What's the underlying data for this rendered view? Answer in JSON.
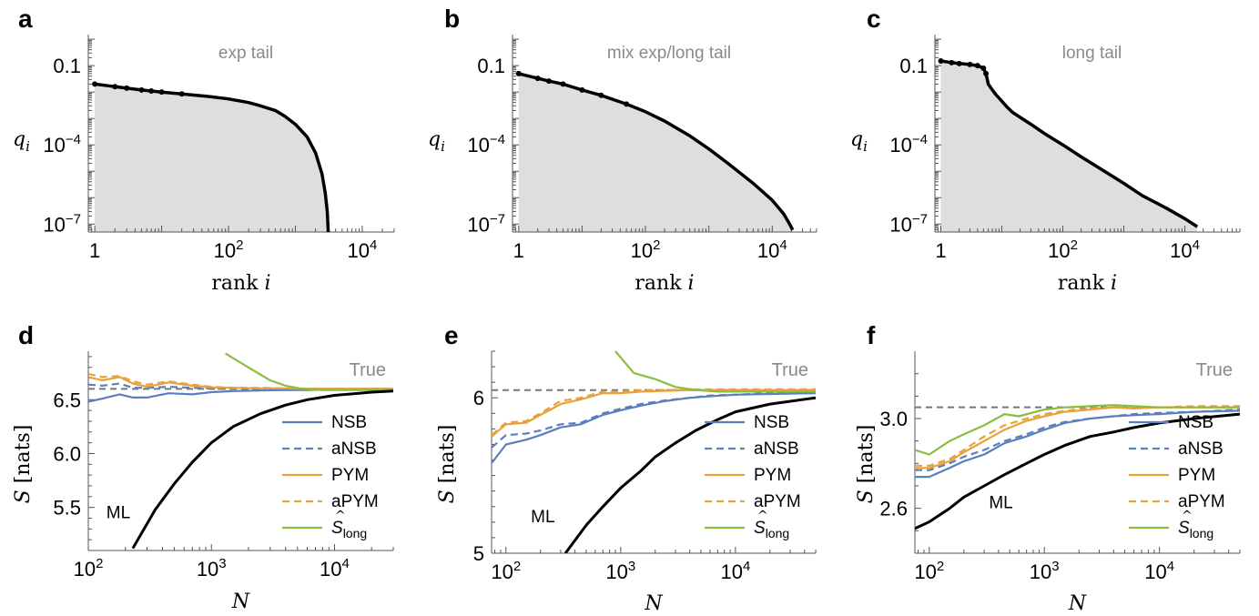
{
  "chart_data": [
    {
      "panel": "a",
      "type": "area",
      "title": "exp tail",
      "xlabel": "rank i",
      "ylabel": "q_i",
      "xscale": "log",
      "yscale": "log",
      "xlim": [
        0.8,
        30000
      ],
      "ylim": [
        5e-08,
        1.5
      ],
      "xticks": [
        {
          "v": 1,
          "m": "1",
          "e": ""
        },
        {
          "v": 100,
          "m": "10",
          "e": "2"
        },
        {
          "v": 10000,
          "m": "10",
          "e": "4"
        }
      ],
      "yticks": [
        {
          "v": 0.1,
          "m": "0.1",
          "e": ""
        },
        {
          "v": 0.0001,
          "m": "10",
          "e": "−4"
        },
        {
          "v": 1e-07,
          "m": "10",
          "e": "−7"
        }
      ],
      "series": [
        {
          "x": [
            1,
            2,
            3,
            5,
            7,
            10,
            20,
            50,
            100,
            200,
            300,
            500,
            700,
            1000,
            1500,
            2000,
            2500,
            2800,
            3000,
            3100
          ],
          "y": [
            0.02,
            0.016,
            0.014,
            0.012,
            0.011,
            0.01,
            0.0085,
            0.0068,
            0.0055,
            0.004,
            0.003,
            0.002,
            0.0012,
            0.0006,
            0.0002,
            5e-05,
            8e-06,
            1.5e-06,
            3e-07,
            5e-08
          ]
        }
      ]
    },
    {
      "panel": "b",
      "type": "area",
      "title": "mix exp/long tail",
      "xlabel": "rank i",
      "ylabel": "q_i",
      "xscale": "log",
      "yscale": "log",
      "xlim": [
        0.8,
        50000
      ],
      "ylim": [
        5e-08,
        1.5
      ],
      "xticks": [
        {
          "v": 1,
          "m": "1",
          "e": ""
        },
        {
          "v": 100,
          "m": "10",
          "e": "2"
        },
        {
          "v": 10000,
          "m": "10",
          "e": "4"
        }
      ],
      "yticks": [
        {
          "v": 0.1,
          "m": "0.1",
          "e": ""
        },
        {
          "v": 0.0001,
          "m": "10",
          "e": "−4"
        },
        {
          "v": 1e-07,
          "m": "10",
          "e": "−7"
        }
      ],
      "series": [
        {
          "x": [
            1,
            2,
            3,
            5,
            10,
            20,
            50,
            100,
            200,
            500,
            1000,
            2000,
            5000,
            10000,
            15000,
            18000,
            21000
          ],
          "y": [
            0.05,
            0.033,
            0.026,
            0.02,
            0.012,
            0.0075,
            0.0035,
            0.0018,
            0.0008,
            0.00022,
            7e-05,
            2e-05,
            3.5e-06,
            8e-07,
            2.5e-07,
            1.2e-07,
            6e-08
          ]
        }
      ]
    },
    {
      "panel": "c",
      "type": "area",
      "title": "long tail",
      "xlabel": "rank i",
      "ylabel": "q_i",
      "xscale": "log",
      "yscale": "log",
      "xlim": [
        0.8,
        80000
      ],
      "ylim": [
        5e-08,
        1.5
      ],
      "xticks": [
        {
          "v": 1,
          "m": "1",
          "e": ""
        },
        {
          "v": 100,
          "m": "10",
          "e": "2"
        },
        {
          "v": 10000,
          "m": "10",
          "e": "4"
        }
      ],
      "yticks": [
        {
          "v": 0.1,
          "m": "0.1",
          "e": ""
        },
        {
          "v": 0.0001,
          "m": "10",
          "e": "−4"
        },
        {
          "v": 1e-07,
          "m": "10",
          "e": "−7"
        }
      ],
      "series": [
        {
          "x": [
            1,
            1.5,
            2,
            3,
            4,
            5,
            5.5,
            6,
            7,
            8,
            10,
            12,
            15,
            20,
            30,
            50,
            100,
            200,
            500,
            1000,
            2000,
            5000,
            10000,
            16000
          ],
          "y": [
            0.15,
            0.13,
            0.12,
            0.11,
            0.1,
            0.08,
            0.05,
            0.02,
            0.012,
            0.008,
            0.0045,
            0.0028,
            0.0017,
            0.0011,
            0.0006,
            0.00027,
            0.0001,
            3.5e-05,
            9.5e-06,
            3.5e-06,
            1.2e-06,
            4e-07,
            1.6e-07,
            8e-08
          ]
        }
      ]
    },
    {
      "panel": "d",
      "type": "line",
      "xlabel": "N",
      "ylabel": "S [nats]",
      "xscale": "log",
      "xlim": [
        100,
        30000
      ],
      "ylim": [
        5.1,
        6.95
      ],
      "xticks": [
        {
          "v": 100,
          "m": "10",
          "e": "2"
        },
        {
          "v": 1000,
          "m": "10",
          "e": "3"
        },
        {
          "v": 10000,
          "m": "10",
          "e": "4"
        }
      ],
      "yticks": [
        {
          "v": 5.5,
          "m": "5.5",
          "e": ""
        },
        {
          "v": 6.0,
          "m": "6.0",
          "e": ""
        },
        {
          "v": 6.5,
          "m": "6.5",
          "e": ""
        }
      ],
      "true_value": 6.6,
      "true_label": "True",
      "ml_label": "ML",
      "ml_label_pos": [
        140,
        5.4
      ],
      "legend": {
        "NSB": "NSB",
        "aNSB": "aNSB",
        "PYM": "PYM",
        "aPYM": "aPYM",
        "Slong": "S",
        "Slong_sub": "long"
      },
      "series": [
        {
          "name": "NSB",
          "color": "#5b7fbd",
          "dash": false,
          "x": [
            100,
            130,
            180,
            230,
            300,
            450,
            700,
            1000,
            1500,
            2500,
            4000,
            6000,
            10000,
            20000,
            30000
          ],
          "y": [
            6.48,
            6.51,
            6.55,
            6.52,
            6.52,
            6.56,
            6.55,
            6.57,
            6.58,
            6.585,
            6.59,
            6.59,
            6.595,
            6.6,
            6.6
          ]
        },
        {
          "name": "aNSB",
          "color": "#5b7fbd",
          "dash": true,
          "x": [
            100,
            130,
            180,
            230,
            300,
            450,
            700,
            1000,
            1500,
            2500,
            4000,
            6000,
            10000,
            20000,
            30000
          ],
          "y": [
            6.64,
            6.63,
            6.65,
            6.61,
            6.61,
            6.62,
            6.61,
            6.605,
            6.6,
            6.6,
            6.6,
            6.6,
            6.6,
            6.6,
            6.6
          ]
        },
        {
          "name": "PYM",
          "color": "#e8a23b",
          "dash": false,
          "x": [
            100,
            130,
            180,
            230,
            300,
            450,
            700,
            1000,
            1500,
            2500,
            4000,
            6000,
            10000,
            20000,
            30000
          ],
          "y": [
            6.71,
            6.68,
            6.71,
            6.65,
            6.62,
            6.66,
            6.63,
            6.615,
            6.61,
            6.605,
            6.605,
            6.6,
            6.6,
            6.6,
            6.6
          ]
        },
        {
          "name": "aPYM",
          "color": "#e8a23b",
          "dash": true,
          "x": [
            100,
            130,
            180,
            230,
            300,
            450,
            700,
            1000,
            1500,
            2500,
            4000,
            6000,
            10000,
            20000,
            30000
          ],
          "y": [
            6.74,
            6.71,
            6.72,
            6.67,
            6.64,
            6.67,
            6.64,
            6.62,
            6.61,
            6.61,
            6.605,
            6.6,
            6.6,
            6.6,
            6.6
          ]
        },
        {
          "name": "S long",
          "color": "#8cbd3f",
          "dash": false,
          "x": [
            1300,
            2000,
            3000,
            4000,
            5500,
            8000,
            12000,
            20000,
            30000
          ],
          "y": [
            6.93,
            6.8,
            6.68,
            6.63,
            6.6,
            6.59,
            6.59,
            6.59,
            6.59
          ]
        },
        {
          "name": "ML",
          "color": "#000000",
          "dash": false,
          "x": [
            230,
            350,
            500,
            700,
            1000,
            1500,
            2500,
            4000,
            6000,
            10000,
            20000,
            30000
          ],
          "y": [
            5.12,
            5.48,
            5.72,
            5.92,
            6.1,
            6.25,
            6.37,
            6.45,
            6.5,
            6.54,
            6.57,
            6.58
          ]
        }
      ]
    },
    {
      "panel": "e",
      "type": "line",
      "xlabel": "N",
      "ylabel": "S [nats]",
      "xscale": "log",
      "xlim": [
        75,
        50000
      ],
      "ylim": [
        5.0,
        6.3
      ],
      "xticks": [
        {
          "v": 100,
          "m": "10",
          "e": "2"
        },
        {
          "v": 1000,
          "m": "10",
          "e": "3"
        },
        {
          "v": 10000,
          "m": "10",
          "e": "4"
        }
      ],
      "yticks": [
        {
          "v": 5.0,
          "m": "5",
          "e": ""
        },
        {
          "v": 6.0,
          "m": "6",
          "e": ""
        }
      ],
      "true_value": 6.05,
      "true_label": "True",
      "ml_label": "ML",
      "ml_label_pos": [
        165,
        5.2
      ],
      "legend": {
        "NSB": "NSB",
        "aNSB": "aNSB",
        "PYM": "PYM",
        "aPYM": "aPYM",
        "Slong": "S",
        "Slong_sub": "long"
      },
      "series": [
        {
          "name": "NSB",
          "color": "#5b7fbd",
          "dash": false,
          "x": [
            75,
            100,
            150,
            200,
            300,
            450,
            700,
            1000,
            1500,
            2500,
            4000,
            6000,
            10000,
            20000,
            50000
          ],
          "y": [
            5.58,
            5.7,
            5.73,
            5.76,
            5.81,
            5.83,
            5.89,
            5.92,
            5.95,
            5.98,
            6.0,
            6.01,
            6.02,
            6.025,
            6.03
          ]
        },
        {
          "name": "aNSB",
          "color": "#5b7fbd",
          "dash": true,
          "x": [
            75,
            100,
            150,
            200,
            300,
            450,
            700,
            1000,
            1500,
            2500,
            4000,
            6000,
            10000,
            20000,
            50000
          ],
          "y": [
            5.68,
            5.76,
            5.77,
            5.79,
            5.83,
            5.84,
            5.9,
            5.93,
            5.96,
            5.985,
            6.0,
            6.015,
            6.02,
            6.03,
            6.035
          ]
        },
        {
          "name": "PYM",
          "color": "#e8a23b",
          "dash": false,
          "x": [
            75,
            100,
            150,
            200,
            300,
            450,
            700,
            1000,
            1500,
            2500,
            4000,
            6000,
            10000,
            20000,
            50000
          ],
          "y": [
            5.75,
            5.83,
            5.84,
            5.89,
            5.96,
            5.99,
            6.03,
            6.03,
            6.04,
            6.045,
            6.05,
            6.05,
            6.05,
            6.05,
            6.05
          ]
        },
        {
          "name": "aPYM",
          "color": "#e8a23b",
          "dash": true,
          "x": [
            75,
            100,
            150,
            200,
            300,
            450,
            700,
            1000,
            1500,
            2500,
            4000,
            6000,
            10000,
            20000,
            50000
          ],
          "y": [
            5.76,
            5.84,
            5.85,
            5.9,
            5.98,
            6.0,
            6.04,
            6.04,
            6.05,
            6.05,
            6.055,
            6.055,
            6.055,
            6.055,
            6.055
          ]
        },
        {
          "name": "S long",
          "color": "#8cbd3f",
          "dash": false,
          "x": [
            900,
            1300,
            2000,
            3000,
            4500,
            7000,
            10000,
            20000,
            50000
          ],
          "y": [
            6.3,
            6.16,
            6.12,
            6.07,
            6.05,
            6.04,
            6.04,
            6.04,
            6.04
          ]
        },
        {
          "name": "ML",
          "color": "#000000",
          "dash": false,
          "x": [
            330,
            500,
            700,
            1000,
            1500,
            2000,
            3000,
            4500,
            7000,
            10000,
            20000,
            50000
          ],
          "y": [
            5.0,
            5.18,
            5.3,
            5.42,
            5.53,
            5.62,
            5.71,
            5.79,
            5.86,
            5.91,
            5.96,
            6.0
          ]
        }
      ]
    },
    {
      "panel": "f",
      "type": "line",
      "xlabel": "N",
      "ylabel": "S [nats]",
      "xscale": "log",
      "xlim": [
        75,
        50000
      ],
      "ylim": [
        2.4,
        3.3
      ],
      "xticks": [
        {
          "v": 100,
          "m": "10",
          "e": "2"
        },
        {
          "v": 1000,
          "m": "10",
          "e": "3"
        },
        {
          "v": 10000,
          "m": "10",
          "e": "4"
        }
      ],
      "yticks": [
        {
          "v": 2.6,
          "m": "2.6",
          "e": ""
        },
        {
          "v": 3.0,
          "m": "3.0",
          "e": ""
        }
      ],
      "true_value": 3.05,
      "true_label": "True",
      "ml_label": "ML",
      "ml_label_pos": [
        330,
        2.6
      ],
      "legend": {
        "NSB": "NSB",
        "aNSB": "aNSB",
        "PYM": "PYM",
        "aPYM": "aPYM",
        "Slong": "S",
        "Slong_sub": "long"
      },
      "series": [
        {
          "name": "NSB",
          "color": "#5b7fbd",
          "dash": false,
          "x": [
            75,
            100,
            150,
            200,
            300,
            450,
            700,
            1000,
            1500,
            2500,
            4000,
            6000,
            10000,
            20000,
            50000
          ],
          "y": [
            2.74,
            2.74,
            2.78,
            2.81,
            2.84,
            2.89,
            2.92,
            2.95,
            2.98,
            3.0,
            3.01,
            3.015,
            3.02,
            3.03,
            3.035
          ]
        },
        {
          "name": "aNSB",
          "color": "#5b7fbd",
          "dash": true,
          "x": [
            75,
            100,
            150,
            200,
            300,
            450,
            700,
            1000,
            1500,
            2500,
            4000,
            6000,
            10000,
            20000,
            50000
          ],
          "y": [
            2.77,
            2.77,
            2.8,
            2.83,
            2.86,
            2.9,
            2.93,
            2.96,
            2.985,
            3.0,
            3.01,
            3.02,
            3.025,
            3.03,
            3.04
          ]
        },
        {
          "name": "PYM",
          "color": "#e8a23b",
          "dash": false,
          "x": [
            75,
            100,
            150,
            200,
            300,
            450,
            700,
            1000,
            1500,
            2500,
            4000,
            6000,
            10000,
            20000,
            50000
          ],
          "y": [
            2.78,
            2.78,
            2.81,
            2.85,
            2.9,
            2.95,
            2.99,
            3.01,
            3.03,
            3.04,
            3.05,
            3.045,
            3.05,
            3.05,
            3.05
          ]
        },
        {
          "name": "aPYM",
          "color": "#e8a23b",
          "dash": true,
          "x": [
            75,
            100,
            150,
            200,
            300,
            450,
            700,
            1000,
            1500,
            2500,
            4000,
            6000,
            10000,
            20000,
            50000
          ],
          "y": [
            2.79,
            2.79,
            2.82,
            2.86,
            2.92,
            2.97,
            3.0,
            3.02,
            3.035,
            3.045,
            3.05,
            3.05,
            3.05,
            3.055,
            3.055
          ]
        },
        {
          "name": "S long",
          "color": "#8cbd3f",
          "dash": false,
          "x": [
            75,
            100,
            150,
            200,
            300,
            450,
            600,
            1000,
            1500,
            2500,
            4000,
            6000,
            10000,
            20000,
            50000
          ],
          "y": [
            2.86,
            2.84,
            2.9,
            2.93,
            2.97,
            3.02,
            3.01,
            3.04,
            3.05,
            3.055,
            3.06,
            3.055,
            3.05,
            3.05,
            3.05
          ]
        },
        {
          "name": "ML",
          "color": "#000000",
          "dash": false,
          "x": [
            75,
            100,
            150,
            200,
            300,
            450,
            700,
            1000,
            1500,
            2500,
            4000,
            6000,
            10000,
            20000,
            50000
          ],
          "y": [
            2.51,
            2.54,
            2.6,
            2.65,
            2.7,
            2.75,
            2.8,
            2.84,
            2.88,
            2.92,
            2.94,
            2.96,
            2.98,
            3.0,
            3.02
          ]
        }
      ]
    }
  ]
}
